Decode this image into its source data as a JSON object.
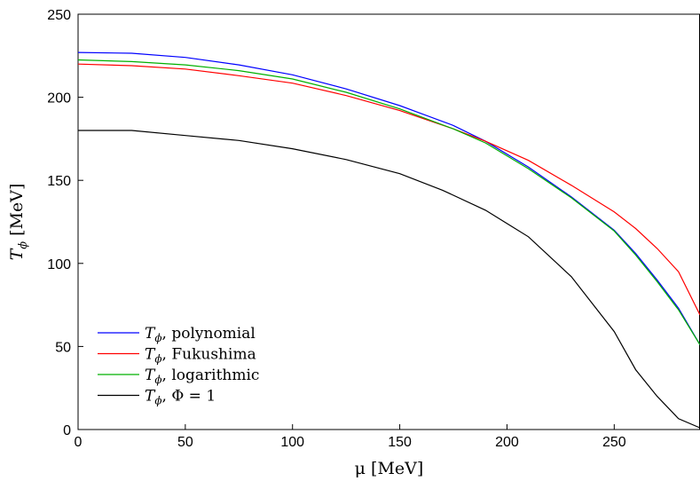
{
  "chart_data": {
    "type": "line",
    "xlabel": "μ  [MeV]",
    "ylabel_symbol": "T",
    "ylabel_sub": "ϕ",
    "ylabel_unit": "[MeV]",
    "xlim": [
      0,
      290
    ],
    "ylim": [
      0,
      250
    ],
    "xticks": [
      0,
      50,
      100,
      150,
      200,
      250
    ],
    "yticks": [
      0,
      50,
      100,
      150,
      200,
      250
    ],
    "legend_position": "bottom-left",
    "series": [
      {
        "name_symbol": "T",
        "name_sub": "ϕ",
        "name_rest": ", polynomial",
        "color": "#0000ff",
        "points": [
          [
            0,
            227
          ],
          [
            25,
            226.5
          ],
          [
            50,
            224
          ],
          [
            75,
            219.5
          ],
          [
            100,
            213.5
          ],
          [
            125,
            205
          ],
          [
            150,
            195
          ],
          [
            175,
            183
          ],
          [
            190,
            173.5
          ],
          [
            210,
            158
          ],
          [
            230,
            140
          ],
          [
            250,
            120
          ],
          [
            260,
            106
          ],
          [
            270,
            90
          ],
          [
            280,
            73
          ],
          [
            290,
            51
          ]
        ]
      },
      {
        "name_symbol": "T",
        "name_sub": "ϕ",
        "name_rest": ", Fukushima",
        "color": "#ff0000",
        "points": [
          [
            0,
            220
          ],
          [
            25,
            219
          ],
          [
            50,
            217
          ],
          [
            75,
            213
          ],
          [
            100,
            208.5
          ],
          [
            125,
            201
          ],
          [
            150,
            192
          ],
          [
            175,
            181
          ],
          [
            190,
            173.5
          ],
          [
            210,
            162
          ],
          [
            230,
            147
          ],
          [
            250,
            131
          ],
          [
            260,
            121
          ],
          [
            270,
            109
          ],
          [
            280,
            95
          ],
          [
            290,
            69
          ]
        ]
      },
      {
        "name_symbol": "T",
        "name_sub": "ϕ",
        "name_rest": ", logarithmic",
        "color": "#00b000",
        "points": [
          [
            0,
            222.5
          ],
          [
            25,
            221.5
          ],
          [
            50,
            219.5
          ],
          [
            75,
            216
          ],
          [
            100,
            211
          ],
          [
            125,
            203
          ],
          [
            150,
            193
          ],
          [
            175,
            181
          ],
          [
            190,
            172.5
          ],
          [
            210,
            157
          ],
          [
            230,
            139.5
          ],
          [
            250,
            119.5
          ],
          [
            260,
            105
          ],
          [
            270,
            89
          ],
          [
            280,
            72
          ],
          [
            290,
            51
          ]
        ]
      },
      {
        "name_symbol": "T",
        "name_sub": "ϕ",
        "name_rest": ", Φ  = 1",
        "color": "#000000",
        "points": [
          [
            0,
            180
          ],
          [
            25,
            180
          ],
          [
            50,
            177
          ],
          [
            75,
            174
          ],
          [
            100,
            169
          ],
          [
            125,
            162.5
          ],
          [
            150,
            154
          ],
          [
            170,
            144
          ],
          [
            190,
            132
          ],
          [
            210,
            116
          ],
          [
            230,
            92
          ],
          [
            250,
            59
          ],
          [
            260,
            36
          ],
          [
            270,
            20
          ],
          [
            280,
            6.5
          ],
          [
            290,
            1
          ]
        ]
      }
    ]
  }
}
